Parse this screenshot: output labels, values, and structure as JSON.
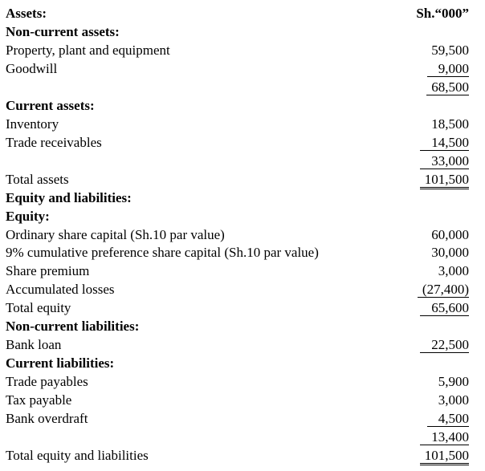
{
  "rows": [
    {
      "label": "Assets:",
      "bold": true,
      "value": "Sh.“000”",
      "value_bold": true
    },
    {
      "label": "Non-current assets:",
      "bold": true
    },
    {
      "label": "Property, plant and equipment",
      "value": "59,500"
    },
    {
      "label": "Goodwill",
      "value": "9,000",
      "underline": "single",
      "wide": true
    },
    {
      "value": "68,500",
      "underline": "single"
    },
    {
      "label": "Current assets:",
      "bold": true
    },
    {
      "label": "Inventory",
      "value": "18,500"
    },
    {
      "label": "Trade receivables",
      "value": "14,500",
      "underline": "single",
      "wide": true
    },
    {
      "value": "33,000",
      "underline": "single",
      "wide": true
    },
    {
      "label": "Total assets",
      "value": "101,500",
      "underline": "double"
    },
    {
      "label": "Equity and liabilities:",
      "bold": true
    },
    {
      "label": "Equity:",
      "bold": true
    },
    {
      "label": "Ordinary share capital (Sh.10 par value)",
      "value": "60,000"
    },
    {
      "label": "9% cumulative preference share capital (Sh.10 par value)",
      "value": "30,000"
    },
    {
      "label": "Share premium",
      "value": "3,000"
    },
    {
      "label": "Accumulated losses",
      "value": "(27,400)",
      "underline": "single"
    },
    {
      "label": "Total equity",
      "value": "65,600",
      "underline": "single",
      "wide": true
    },
    {
      "label": "Non-current liabilities:",
      "bold": true
    },
    {
      "label": "Bank loan",
      "value": "22,500",
      "underline": "single",
      "wide": true
    },
    {
      "label": "Current liabilities:",
      "bold": true
    },
    {
      "label": "Trade payables",
      "value": "5,900"
    },
    {
      "label": "Tax payable",
      "value": "3,000"
    },
    {
      "label": "Bank overdraft",
      "value": "4,500",
      "underline": "single",
      "wide": true
    },
    {
      "value": "13,400",
      "underline": "single",
      "wide": true
    },
    {
      "label": "Total equity and liabilities",
      "value": "101,500",
      "underline": "double"
    }
  ]
}
